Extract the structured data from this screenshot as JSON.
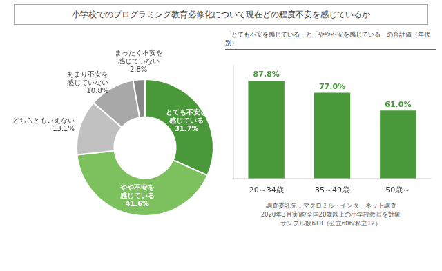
{
  "chart_data": [
    {
      "type": "pie",
      "title": "小学校でのプログラミング教育必修化について現在どの程度不安を感じているか",
      "categories": [
        "とても不安を\n感じている",
        "やや不安を\n感じている",
        "どちらともいえない",
        "あまり不安を\n感じていない",
        "まったく不安を\n感じていない"
      ],
      "values": [
        31.7,
        41.6,
        13.1,
        10.8,
        2.8
      ],
      "value_labels": [
        "31.7%",
        "41.6%",
        "13.1%",
        "10.8%",
        "2.8%"
      ],
      "colors": [
        "#4a9a3c",
        "#7dc05e",
        "#c0c0c0",
        "#a8a8a8",
        "#888888"
      ],
      "data_labels": true
    },
    {
      "type": "bar",
      "subtitle": "「とても不安を感じている」と「やや不安を感じている」の合計値（年代別）",
      "categories": [
        "20～34歳",
        "35～49歳",
        "50歳～"
      ],
      "values": [
        87.8,
        77.0,
        61.0
      ],
      "value_labels": [
        "87.8%",
        "77.0%",
        "61.0%"
      ],
      "color": "#4a9a3c",
      "ylim": [
        0,
        102
      ],
      "tick_labels": "x",
      "grid": false,
      "data_labels": true,
      "annotations": [
        "調査委託先：マクロミル・インターネット調査\n2020年3月実施/全国20歳以上の小学校教員を対象\nサンプル数618（公立606/私立12）"
      ]
    }
  ]
}
